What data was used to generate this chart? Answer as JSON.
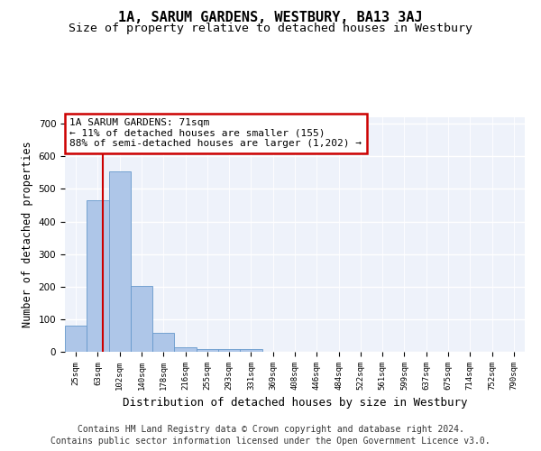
{
  "title": "1A, SARUM GARDENS, WESTBURY, BA13 3AJ",
  "subtitle": "Size of property relative to detached houses in Westbury",
  "xlabel": "Distribution of detached houses by size in Westbury",
  "ylabel": "Number of detached properties",
  "footnote1": "Contains HM Land Registry data © Crown copyright and database right 2024.",
  "footnote2": "Contains public sector information licensed under the Open Government Licence v3.0.",
  "bar_labels": [
    "25sqm",
    "63sqm",
    "102sqm",
    "140sqm",
    "178sqm",
    "216sqm",
    "255sqm",
    "293sqm",
    "331sqm",
    "369sqm",
    "408sqm",
    "446sqm",
    "484sqm",
    "522sqm",
    "561sqm",
    "599sqm",
    "637sqm",
    "675sqm",
    "714sqm",
    "752sqm",
    "790sqm"
  ],
  "bar_values": [
    80,
    465,
    553,
    203,
    57,
    15,
    9,
    8,
    9,
    0,
    0,
    0,
    0,
    0,
    0,
    0,
    0,
    0,
    0,
    0,
    0
  ],
  "bar_color": "#aec6e8",
  "bar_edge_color": "#6699cc",
  "property_line_x": 1.21,
  "property_line_color": "#cc0000",
  "ylim": [
    0,
    720
  ],
  "yticks": [
    0,
    100,
    200,
    300,
    400,
    500,
    600,
    700
  ],
  "annotation_text": "1A SARUM GARDENS: 71sqm\n← 11% of detached houses are smaller (155)\n88% of semi-detached houses are larger (1,202) →",
  "annotation_box_color": "#cc0000",
  "annotation_fontsize": 8,
  "title_fontsize": 11,
  "subtitle_fontsize": 9.5,
  "xlabel_fontsize": 9,
  "ylabel_fontsize": 8.5,
  "footnote_fontsize": 7,
  "background_color": "#eef2fa",
  "grid_color": "#ffffff"
}
